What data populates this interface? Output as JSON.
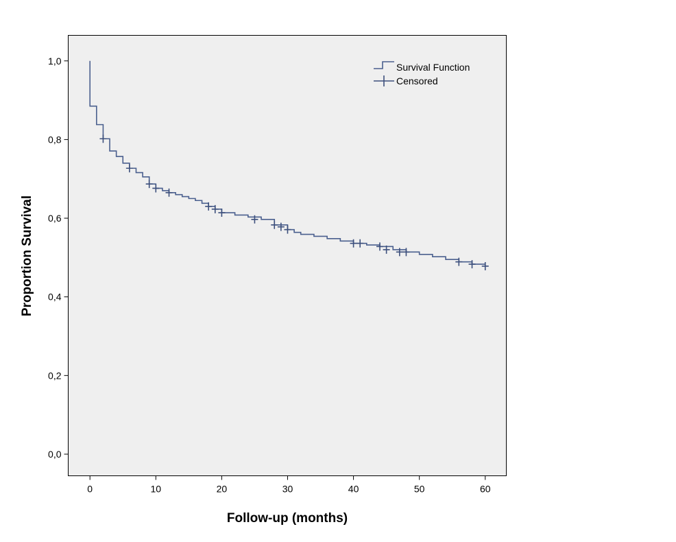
{
  "chart_data": {
    "type": "line",
    "title": "",
    "xlabel": "Follow-up (months)",
    "ylabel": "Proportion Survival",
    "xlim": [
      -3.3,
      63.2
    ],
    "ylim": [
      -0.055,
      1.065
    ],
    "xticks": [
      0,
      10,
      20,
      30,
      40,
      50,
      60
    ],
    "xtick_labels": [
      "0",
      "10",
      "20",
      "30",
      "40",
      "50",
      "60"
    ],
    "yticks": [
      0.0,
      0.2,
      0.4,
      0.6,
      0.8,
      1.0
    ],
    "ytick_labels": [
      "0,0",
      "0,2",
      "0,4",
      "0,6",
      "0,8",
      "1,0"
    ],
    "grid": false,
    "legend_position": "top-right",
    "legend": {
      "survival_label": "Survival Function",
      "censored_label": "Censored"
    },
    "colors": {
      "plot_background": "#efefef",
      "line": "#4a5f8e",
      "censor_mark": "#3c4f7c",
      "frame": "#000000"
    },
    "series": [
      {
        "name": "Survival Function",
        "kind": "step",
        "x": [
          0,
          0,
          1,
          2,
          3,
          4,
          5,
          6,
          7,
          8,
          9,
          10,
          11,
          12,
          13,
          14,
          15,
          16,
          17,
          18,
          19,
          20,
          22,
          24,
          26,
          28,
          30,
          31,
          32,
          34,
          36,
          38,
          40,
          42,
          44,
          46,
          48,
          50,
          52,
          54,
          56,
          58,
          60
        ],
        "y": [
          1.0,
          0.885,
          0.838,
          0.802,
          0.771,
          0.757,
          0.74,
          0.727,
          0.716,
          0.705,
          0.687,
          0.676,
          0.67,
          0.665,
          0.66,
          0.655,
          0.65,
          0.645,
          0.638,
          0.63,
          0.623,
          0.614,
          0.608,
          0.603,
          0.597,
          0.583,
          0.571,
          0.564,
          0.559,
          0.554,
          0.548,
          0.542,
          0.536,
          0.532,
          0.528,
          0.52,
          0.514,
          0.508,
          0.502,
          0.495,
          0.489,
          0.483,
          0.478
        ]
      },
      {
        "name": "Censored",
        "kind": "censor-marks",
        "x": [
          2,
          6,
          9,
          10,
          12,
          18,
          19,
          20,
          25,
          28,
          29,
          30,
          40,
          41,
          44,
          45,
          47,
          48,
          56,
          58,
          60
        ],
        "y": [
          0.802,
          0.727,
          0.687,
          0.676,
          0.665,
          0.63,
          0.623,
          0.614,
          0.597,
          0.583,
          0.578,
          0.571,
          0.536,
          0.536,
          0.528,
          0.52,
          0.514,
          0.514,
          0.489,
          0.483,
          0.478
        ]
      }
    ]
  }
}
